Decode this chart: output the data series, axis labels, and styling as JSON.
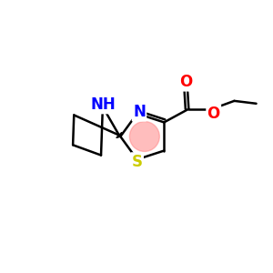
{
  "bg_color": "#ffffff",
  "atom_colors": {
    "N": "#0000ff",
    "S": "#cccc00",
    "O": "#ff0000",
    "C": "#000000"
  },
  "ring_highlight_color": "#ff8888",
  "ring_highlight_alpha": 0.55,
  "figsize": [
    3.0,
    3.0
  ],
  "dpi": 100,
  "lw": 1.8,
  "font_size": 12
}
